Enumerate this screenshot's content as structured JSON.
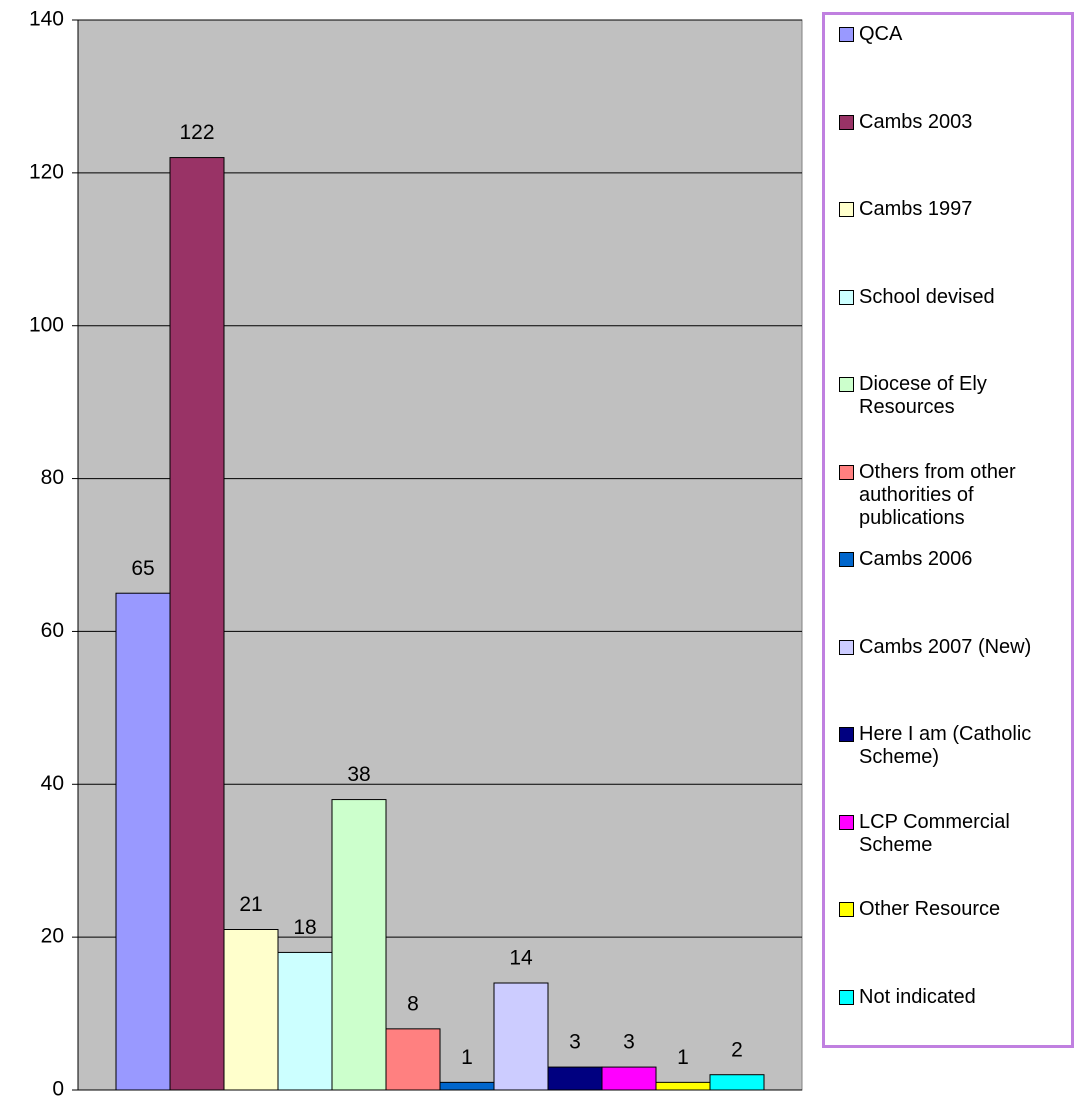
{
  "chart_data": {
    "type": "bar",
    "categories": [
      null
    ],
    "series": [
      {
        "name": "QCA",
        "color": "#9999ff",
        "values": [
          65
        ]
      },
      {
        "name": "Cambs 2003",
        "color": "#993366",
        "values": [
          122
        ]
      },
      {
        "name": "Cambs 1997",
        "color": "#ffffcc",
        "values": [
          21
        ]
      },
      {
        "name": "School devised",
        "color": "#ccffff",
        "values": [
          18
        ]
      },
      {
        "name": "Diocese of Ely Resources",
        "color": "#ccffcc",
        "values": [
          38
        ]
      },
      {
        "name": "Others from other authorities of publications",
        "color": "#ff8080",
        "values": [
          8
        ]
      },
      {
        "name": "Cambs 2006",
        "color": "#0066cc",
        "values": [
          1
        ]
      },
      {
        "name": "Cambs 2007 (New)",
        "color": "#ccccff",
        "values": [
          14
        ]
      },
      {
        "name": "Here I am (Catholic Scheme)",
        "color": "#000080",
        "values": [
          3
        ]
      },
      {
        "name": "LCP Commercial Scheme",
        "color": "#ff00ff",
        "values": [
          3
        ]
      },
      {
        "name": "Other Resource",
        "color": "#ffff00",
        "values": [
          1
        ]
      },
      {
        "name": "Not indicated",
        "color": "#00ffff",
        "values": [
          2
        ]
      }
    ],
    "ylim": [
      0,
      140
    ],
    "yticks": [
      0,
      20,
      40,
      60,
      80,
      100,
      120,
      140
    ],
    "grid": true,
    "legend": "right",
    "plot_background": "#c0c0c0"
  }
}
